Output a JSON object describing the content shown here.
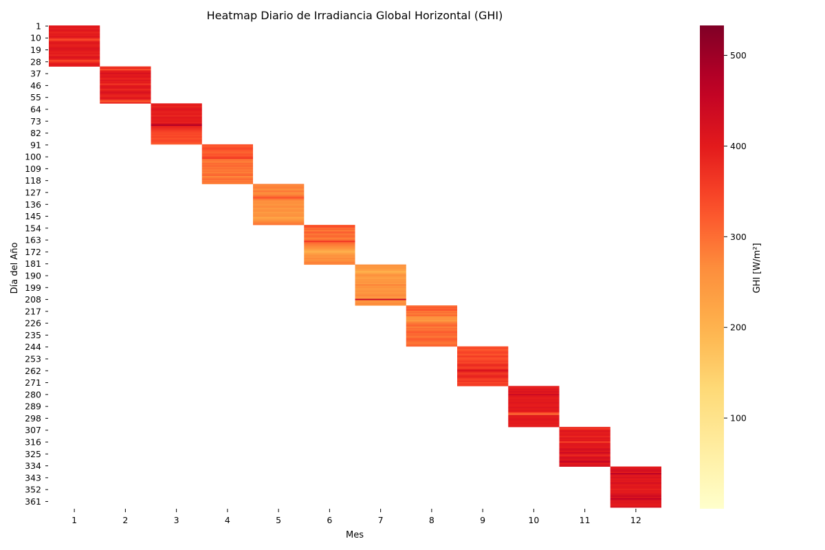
{
  "chart_data": {
    "type": "heatmap",
    "title": "Heatmap Diario de Irradiancia Global Horizontal (GHI)",
    "xlabel": "Mes",
    "ylabel": "Día del Año",
    "colorbar_label": "GHI [W/m²]",
    "colormap": "YlOrRd",
    "color_range": [
      0,
      533
    ],
    "x_categories": [
      1,
      2,
      3,
      4,
      5,
      6,
      7,
      8,
      9,
      10,
      11,
      12
    ],
    "y_range": [
      1,
      366
    ],
    "y_ticks": [
      1,
      10,
      19,
      28,
      37,
      46,
      55,
      64,
      73,
      82,
      91,
      100,
      109,
      118,
      127,
      136,
      145,
      154,
      163,
      172,
      181,
      190,
      199,
      208,
      217,
      226,
      235,
      244,
      253,
      262,
      271,
      280,
      289,
      298,
      307,
      316,
      325,
      334,
      343,
      352,
      361
    ],
    "colorbar_ticks": [
      100,
      200,
      300,
      400,
      500
    ],
    "months": [
      {
        "month": 1,
        "first_day": 1,
        "last_day": 31,
        "ghi": [
          400,
          405,
          392,
          410,
          398,
          385,
          402,
          395,
          412,
          390,
          340,
          360,
          402,
          408,
          396,
          392,
          405,
          415,
          410,
          398,
          392,
          402,
          380,
          408,
          412,
          395,
          350,
          360,
          392,
          405,
          398
        ]
      },
      {
        "month": 2,
        "first_day": 32,
        "last_day": 59,
        "ghi": [
          365,
          380,
          330,
          395,
          405,
          420,
          398,
          410,
          402,
          385,
          410,
          395,
          402,
          360,
          400,
          412,
          405,
          380,
          398,
          420,
          410,
          395,
          385,
          402,
          410,
          360,
          320,
          380
        ]
      },
      {
        "month": 3,
        "first_day": 60,
        "last_day": 90,
        "ghi": [
          392,
          400,
          385,
          398,
          410,
          402,
          390,
          395,
          400,
          380,
          405,
          398,
          395,
          402,
          390,
          420,
          480,
          395,
          380,
          370,
          360,
          350,
          340,
          345,
          335,
          350,
          330,
          340,
          345,
          335,
          320
        ]
      },
      {
        "month": 4,
        "first_day": 91,
        "last_day": 120,
        "ghi": [
          330,
          320,
          335,
          345,
          325,
          315,
          310,
          330,
          320,
          340,
          360,
          300,
          290,
          280,
          305,
          295,
          310,
          290,
          300,
          285,
          295,
          280,
          300,
          310,
          270,
          290,
          305,
          285,
          295,
          280
        ]
      },
      {
        "month": 5,
        "first_day": 121,
        "last_day": 151,
        "ghi": [
          280,
          270,
          285,
          275,
          260,
          290,
          270,
          265,
          280,
          300,
          330,
          290,
          270,
          255,
          265,
          250,
          260,
          270,
          245,
          255,
          265,
          240,
          250,
          255,
          260,
          220,
          240,
          250,
          270,
          280,
          290
        ]
      },
      {
        "month": 6,
        "first_day": 152,
        "last_day": 181,
        "ghi": [
          320,
          340,
          300,
          310,
          280,
          320,
          300,
          290,
          310,
          295,
          280,
          300,
          360,
          310,
          290,
          280,
          270,
          260,
          240,
          220,
          200,
          230,
          245,
          260,
          250,
          270,
          255,
          265,
          280,
          275
        ]
      },
      {
        "month": 7,
        "first_day": 182,
        "last_day": 212,
        "ghi": [
          260,
          245,
          250,
          240,
          230,
          200,
          220,
          250,
          260,
          240,
          230,
          250,
          245,
          255,
          235,
          280,
          250,
          260,
          240,
          250,
          255,
          245,
          260,
          270,
          250,
          240,
          450,
          260,
          250,
          270,
          260
        ]
      },
      {
        "month": 8,
        "first_day": 213,
        "last_day": 243,
        "ghi": [
          300,
          320,
          310,
          330,
          290,
          300,
          280,
          310,
          270,
          250,
          260,
          240,
          270,
          290,
          300,
          310,
          280,
          300,
          290,
          310,
          320,
          300,
          310,
          290,
          300,
          320,
          310,
          300,
          290,
          300,
          310
        ]
      },
      {
        "month": 9,
        "first_day": 244,
        "last_day": 273,
        "ghi": [
          330,
          345,
          320,
          335,
          350,
          340,
          325,
          360,
          340,
          330,
          345,
          355,
          340,
          370,
          380,
          360,
          350,
          390,
          420,
          380,
          360,
          370,
          390,
          380,
          360,
          350,
          370,
          340,
          360,
          350
        ]
      },
      {
        "month": 10,
        "first_day": 274,
        "last_day": 304,
        "ghi": [
          400,
          390,
          410,
          405,
          420,
          398,
          440,
          410,
          400,
          395,
          405,
          398,
          410,
          402,
          395,
          400,
          410,
          398,
          405,
          400,
          330,
          300,
          410,
          398,
          405,
          410,
          400,
          398,
          402,
          395,
          400
        ]
      },
      {
        "month": 11,
        "first_day": 305,
        "last_day": 334,
        "ghi": [
          380,
          360,
          400,
          410,
          395,
          405,
          400,
          380,
          410,
          398,
          405,
          350,
          400,
          410,
          405,
          398,
          420,
          430,
          400,
          440,
          410,
          380,
          405,
          430,
          410,
          420,
          460,
          400,
          410,
          420
        ]
      },
      {
        "month": 12,
        "first_day": 335,
        "last_day": 365,
        "ghi": [
          400,
          410,
          420,
          430,
          398,
          470,
          410,
          405,
          420,
          398,
          410,
          400,
          430,
          405,
          398,
          410,
          400,
          390,
          405,
          398,
          410,
          420,
          440,
          410,
          460,
          420,
          405,
          410,
          400,
          398,
          420
        ]
      }
    ]
  }
}
